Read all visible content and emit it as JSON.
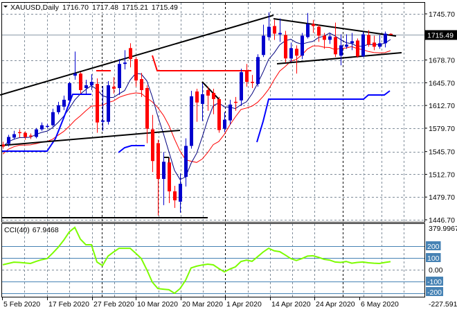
{
  "header": {
    "symbol_timeframe": "XAUUSD,Daily",
    "open": "1716.70",
    "high": "1717.48",
    "low": "1715.21",
    "close": "1715.49",
    "menu_icon": "triangle-down-icon"
  },
  "colors": {
    "bull": "#0000cd",
    "bear": "#ff0000",
    "ma_fast": "#00007f",
    "ma_slow": "#ff0000",
    "stop_line": "#0000ff",
    "cci": "#7cfc00",
    "cci_levels": "#4682b4",
    "trendline": "#000000",
    "grid": "#7f8c99",
    "current_price_bg": "#000000"
  },
  "chart_data": [
    {
      "type": "candlestick",
      "title": "XAUUSD,Daily",
      "y_ticks": [
        "1745.70",
        "1678.70",
        "1645.70",
        "1612.70",
        "1579.70",
        "1545.70",
        "1512.70",
        "1479.70",
        "1446.70"
      ],
      "ylim": [
        1446.7,
        1745.7
      ],
      "current_price": "1715.49",
      "x_ticks": [
        "5 Feb 2020",
        "17 Feb 2020",
        "27 Feb 2020",
        "10 Mar 2020",
        "20 Mar 2020",
        "1 Apr 2020",
        "14 Apr 2020",
        "24 Apr 2020",
        "6 May 2020"
      ],
      "grid": true,
      "ohlc": [
        [
          1556,
          1560,
          1550,
          1553
        ],
        [
          1557,
          1570,
          1553,
          1567
        ],
        [
          1566,
          1576,
          1563,
          1571
        ],
        [
          1574,
          1578,
          1566,
          1573
        ],
        [
          1573,
          1575,
          1563,
          1567
        ],
        [
          1569,
          1572,
          1564,
          1568
        ],
        [
          1567,
          1580,
          1565,
          1578
        ],
        [
          1578,
          1588,
          1576,
          1584
        ],
        [
          1582,
          1586,
          1580,
          1583
        ],
        [
          1584,
          1608,
          1582,
          1603
        ],
        [
          1603,
          1618,
          1600,
          1613
        ],
        [
          1611,
          1627,
          1606,
          1621
        ],
        [
          1620,
          1647,
          1617,
          1645
        ],
        [
          1656,
          1691,
          1650,
          1659
        ],
        [
          1659,
          1661,
          1630,
          1635
        ],
        [
          1638,
          1650,
          1628,
          1642
        ],
        [
          1642,
          1658,
          1635,
          1647
        ],
        [
          1644,
          1652,
          1573,
          1588
        ],
        [
          1589,
          1641,
          1576,
          1591
        ],
        [
          1589,
          1648,
          1585,
          1642
        ],
        [
          1640,
          1654,
          1630,
          1637
        ],
        [
          1638,
          1680,
          1628,
          1673
        ],
        [
          1673,
          1693,
          1665,
          1675
        ],
        [
          1696,
          1703,
          1668,
          1680
        ],
        [
          1680,
          1683,
          1640,
          1649
        ],
        [
          1651,
          1660,
          1625,
          1635
        ],
        [
          1638,
          1642,
          1558,
          1579
        ],
        [
          1578,
          1599,
          1516,
          1532
        ],
        [
          1558,
          1563,
          1453,
          1506
        ],
        [
          1506,
          1545,
          1468,
          1531
        ],
        [
          1530,
          1536,
          1471,
          1488
        ],
        [
          1488,
          1496,
          1464,
          1475
        ],
        [
          1473,
          1514,
          1457,
          1499
        ],
        [
          1509,
          1565,
          1495,
          1554
        ],
        [
          1554,
          1634,
          1550,
          1626
        ],
        [
          1633,
          1637,
          1589,
          1617
        ],
        [
          1615,
          1645,
          1590,
          1629
        ],
        [
          1635,
          1640,
          1605,
          1627
        ],
        [
          1631,
          1637,
          1600,
          1622
        ],
        [
          1622,
          1625,
          1573,
          1577
        ],
        [
          1579,
          1603,
          1574,
          1592
        ],
        [
          1591,
          1621,
          1585,
          1614
        ],
        [
          1618,
          1625,
          1605,
          1617
        ],
        [
          1620,
          1666,
          1612,
          1661
        ],
        [
          1663,
          1673,
          1640,
          1647
        ],
        [
          1647,
          1657,
          1638,
          1646
        ],
        [
          1644,
          1687,
          1640,
          1683
        ],
        [
          1686,
          1730,
          1683,
          1714
        ],
        [
          1712,
          1748,
          1707,
          1727
        ],
        [
          1728,
          1737,
          1708,
          1717
        ],
        [
          1716,
          1739,
          1705,
          1718
        ],
        [
          1715,
          1721,
          1675,
          1681
        ],
        [
          1681,
          1704,
          1676,
          1696
        ],
        [
          1695,
          1700,
          1659,
          1685
        ],
        [
          1685,
          1718,
          1680,
          1714
        ],
        [
          1712,
          1747,
          1710,
          1731
        ],
        [
          1731,
          1737,
          1718,
          1728
        ],
        [
          1727,
          1730,
          1705,
          1714
        ],
        [
          1714,
          1718,
          1695,
          1708
        ],
        [
          1708,
          1718,
          1702,
          1713
        ],
        [
          1712,
          1733,
          1683,
          1687
        ],
        [
          1685,
          1716,
          1671,
          1700
        ],
        [
          1698,
          1716,
          1695,
          1701
        ],
        [
          1703,
          1718,
          1693,
          1706
        ],
        [
          1707,
          1710,
          1682,
          1684
        ],
        [
          1684,
          1720,
          1683,
          1716
        ],
        [
          1715,
          1722,
          1698,
          1701
        ],
        [
          1704,
          1714,
          1693,
          1698
        ],
        [
          1698,
          1715,
          1695,
          1703
        ],
        [
          1703,
          1720,
          1697,
          1717
        ],
        [
          1716.7,
          1717.48,
          1715.21,
          1715.49
        ]
      ]
    },
    {
      "type": "line",
      "label": "CCI(40)",
      "current_value": "67.9468",
      "ylim": [
        -227.591,
        379.9967
      ],
      "y_ticks": [
        "379.9967",
        "200",
        "100",
        "0.00",
        "-100",
        "-200",
        "-227.591"
      ],
      "levels": [
        200,
        100,
        -100,
        -200
      ],
      "values": [
        42,
        53,
        64,
        62,
        57,
        53,
        70,
        85,
        94,
        140,
        190,
        250,
        320,
        359,
        260,
        212,
        212,
        65,
        35,
        115,
        150,
        182,
        182,
        182,
        140,
        95,
        0,
        -106,
        -160,
        -165,
        -170,
        -200,
        -160,
        -90,
        15,
        30,
        40,
        47,
        41,
        10,
        -18,
        5,
        24,
        70,
        82,
        71,
        110,
        150,
        182,
        160,
        153,
        125,
        94,
        78,
        95,
        115,
        118,
        105,
        88,
        82,
        65,
        62,
        70,
        55,
        62,
        65,
        59,
        55,
        53,
        62,
        67.9468
      ]
    }
  ]
}
